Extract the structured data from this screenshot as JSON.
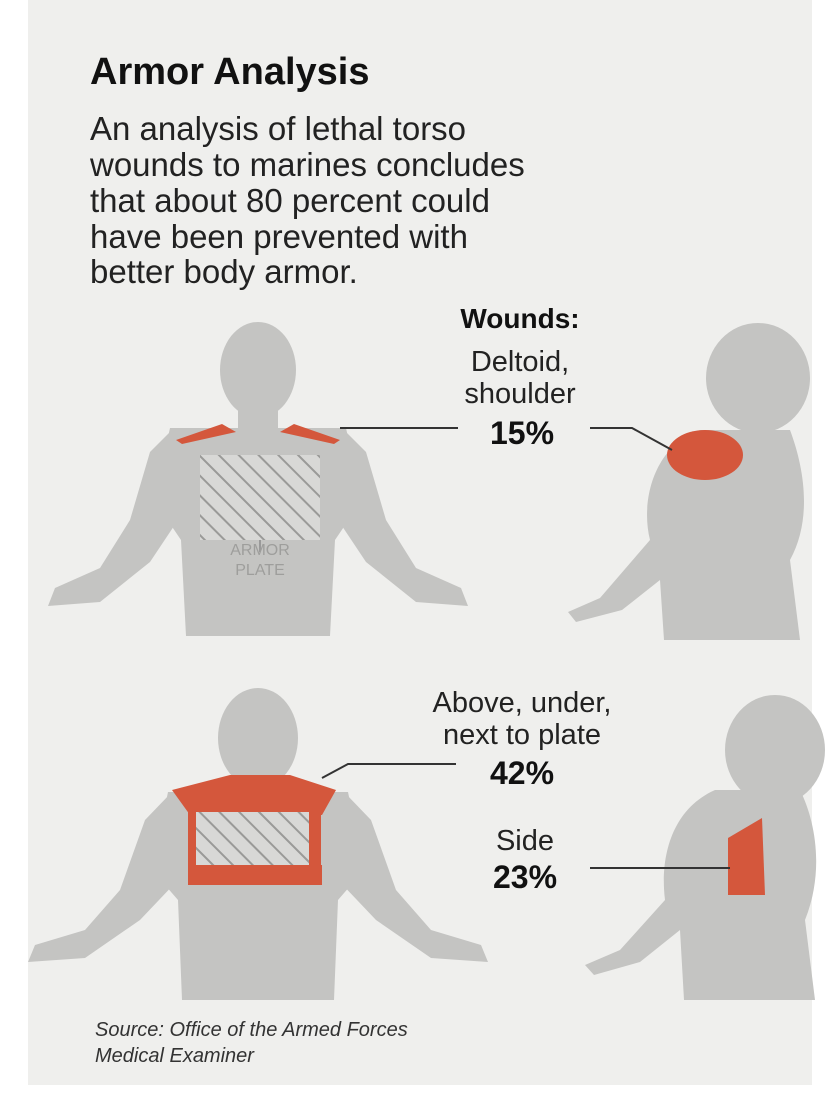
{
  "title": "Armor Analysis",
  "description": [
    "An analysis of lethal torso",
    "wounds to marines concludes",
    "that about 80 percent could",
    "have been prevented with",
    "better body armor."
  ],
  "wounds": {
    "heading": "Wounds:",
    "items": [
      {
        "label": [
          "Deltoid,",
          "shoulder"
        ],
        "percent": "15%"
      },
      {
        "label": [
          "Above, under,",
          "next to plate"
        ],
        "percent": "42%"
      },
      {
        "label": [
          "Side"
        ],
        "percent": "23%"
      }
    ]
  },
  "armor_label": [
    "ARMOR",
    "PLATE"
  ],
  "source": [
    "Source: Office of the Armed Forces",
    "Medical Examiner"
  ]
}
